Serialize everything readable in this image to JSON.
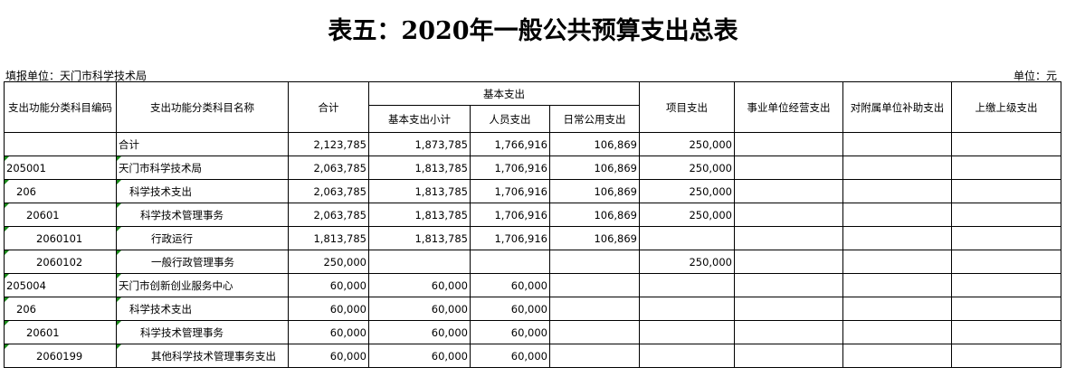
{
  "header": {
    "title": "表五：2020年一般公共预算支出总表",
    "unit_org": "填报单位：天门市科学技术局",
    "unit": "单位：元"
  },
  "table": {
    "columns": [
      "支出功能分类科目编码",
      "支出功能分类科目名称",
      "合计",
      "基本支出",
      "项目支出",
      "事业单位经营支出",
      "对附属单位补助支出",
      "上缴上级支出"
    ],
    "subcolumns": [
      "基本支出小计",
      "人员支出",
      "日常公用支出"
    ],
    "rows": [
      [
        null,
        "合计",
        "2,123,785",
        "1,873,785",
        "1,766,916",
        "106,869",
        "250,000",
        null,
        null,
        null
      ],
      [
        "205001",
        "天门市科学技术局",
        "2,063,785",
        "1,813,785",
        "1,706,916",
        "106,869",
        "250,000",
        null,
        null,
        null
      ],
      [
        "206",
        "科学技术支出",
        "2,063,785",
        "1,813,785",
        "1,706,916",
        "106,869",
        "250,000",
        null,
        null,
        null
      ],
      [
        "20601",
        "科学技术管理事务",
        "2,063,785",
        "1,813,785",
        "1,706,916",
        "106,869",
        "250,000",
        null,
        null,
        null
      ],
      [
        "2060101",
        "行政运行",
        "1,813,785",
        "1,813,785",
        "1,706,916",
        "106,869",
        null,
        null,
        null,
        null
      ],
      [
        "2060102",
        "一般行政管理事务",
        "250,000",
        null,
        null,
        null,
        "250,000",
        null,
        null,
        null
      ],
      [
        "205004",
        "天门市创新创业服务中心",
        "60,000",
        "60,000",
        "60,000",
        null,
        null,
        null,
        null,
        null
      ],
      [
        "206",
        "科学技术支出",
        "60,000",
        "60,000",
        "60,000",
        null,
        null,
        null,
        null,
        null
      ],
      [
        "20601",
        "科学技术管理事务",
        "60,000",
        "60,000",
        "60,000",
        null,
        null,
        null,
        null,
        null
      ],
      [
        "2060199",
        "其他科学技术管理事务支出",
        "60,000",
        "60,000",
        "60,000",
        null,
        null,
        null,
        null,
        null
      ]
    ]
  }
}
